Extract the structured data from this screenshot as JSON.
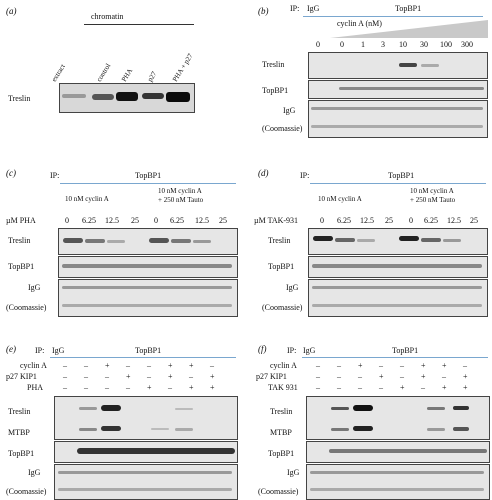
{
  "panels": {
    "a": {
      "label": "(a)",
      "header": "chromatin",
      "lanes": [
        "extract",
        "control",
        "PHA",
        "p27",
        "PHA + p27"
      ],
      "row": "Treslin"
    },
    "b": {
      "label": "(b)",
      "ip_label": "IP:",
      "ip_igg": "IgG",
      "ip_topbp1": "TopBP1",
      "conc_label": "cyclin A (nM)",
      "concs": [
        "0",
        "0",
        "1",
        "3",
        "10",
        "30",
        "100",
        "300"
      ],
      "rows": [
        "Treslin",
        "TopBP1",
        "IgG",
        "(Coomassie)"
      ]
    },
    "c": {
      "label": "(c)",
      "ip_label": "IP:",
      "ip_topbp1": "TopBP1",
      "group1": "10 nM cyclin A",
      "group2_line1": "10 nM cyclin A",
      "group2_line2": "+ 250 nM Tauto",
      "drug_label": "µM PHA",
      "concs": [
        "0",
        "6.25",
        "12.5",
        "25",
        "0",
        "6.25",
        "12.5",
        "25"
      ],
      "rows": [
        "Treslin",
        "TopBP1",
        "IgG",
        "(Coomassie)"
      ]
    },
    "d": {
      "label": "(d)",
      "ip_label": "IP:",
      "ip_topbp1": "TopBP1",
      "group1": "10 nM cyclin A",
      "group2_line1": "10 nM cyclin A",
      "group2_line2": "+ 250 nM Tauto",
      "drug_label": "µM TAK-931",
      "concs": [
        "0",
        "6.25",
        "12.5",
        "25",
        "0",
        "6.25",
        "12.5",
        "25"
      ],
      "rows": [
        "Treslin",
        "TopBP1",
        "IgG",
        "(Coomassie)"
      ]
    },
    "e": {
      "label": "(e)",
      "ip_label": "IP:",
      "ip_igg": "IgG",
      "ip_topbp1": "TopBP1",
      "conditions": [
        {
          "name": "cyclin A",
          "signs": [
            "–",
            "–",
            "+",
            "–",
            "–",
            "+",
            "+",
            "–"
          ]
        },
        {
          "name": "p27 KIP1",
          "signs": [
            "–",
            "–",
            "–",
            "+",
            "–",
            "+",
            "–",
            "+"
          ]
        },
        {
          "name": "PHA",
          "signs": [
            "–",
            "–",
            "–",
            "–",
            "+",
            "–",
            "+",
            "+"
          ]
        }
      ],
      "rows": [
        "Treslin",
        "MTBP",
        "TopBP1",
        "IgG",
        "(Coomassie)"
      ]
    },
    "f": {
      "label": "(f)",
      "ip_label": "IP:",
      "ip_igg": "IgG",
      "ip_topbp1": "TopBP1",
      "conditions": [
        {
          "name": "cyclin A",
          "signs": [
            "–",
            "–",
            "+",
            "–",
            "–",
            "+",
            "+",
            "–"
          ]
        },
        {
          "name": "p27 KIP1",
          "signs": [
            "–",
            "–",
            "–",
            "+",
            "–",
            "+",
            "–",
            "+"
          ]
        },
        {
          "name": "TAK 931",
          "signs": [
            "–",
            "–",
            "–",
            "–",
            "+",
            "–",
            "+",
            "+"
          ]
        }
      ],
      "rows": [
        "Treslin",
        "MTBP",
        "TopBP1",
        "IgG",
        "(Coomassie)"
      ]
    }
  }
}
